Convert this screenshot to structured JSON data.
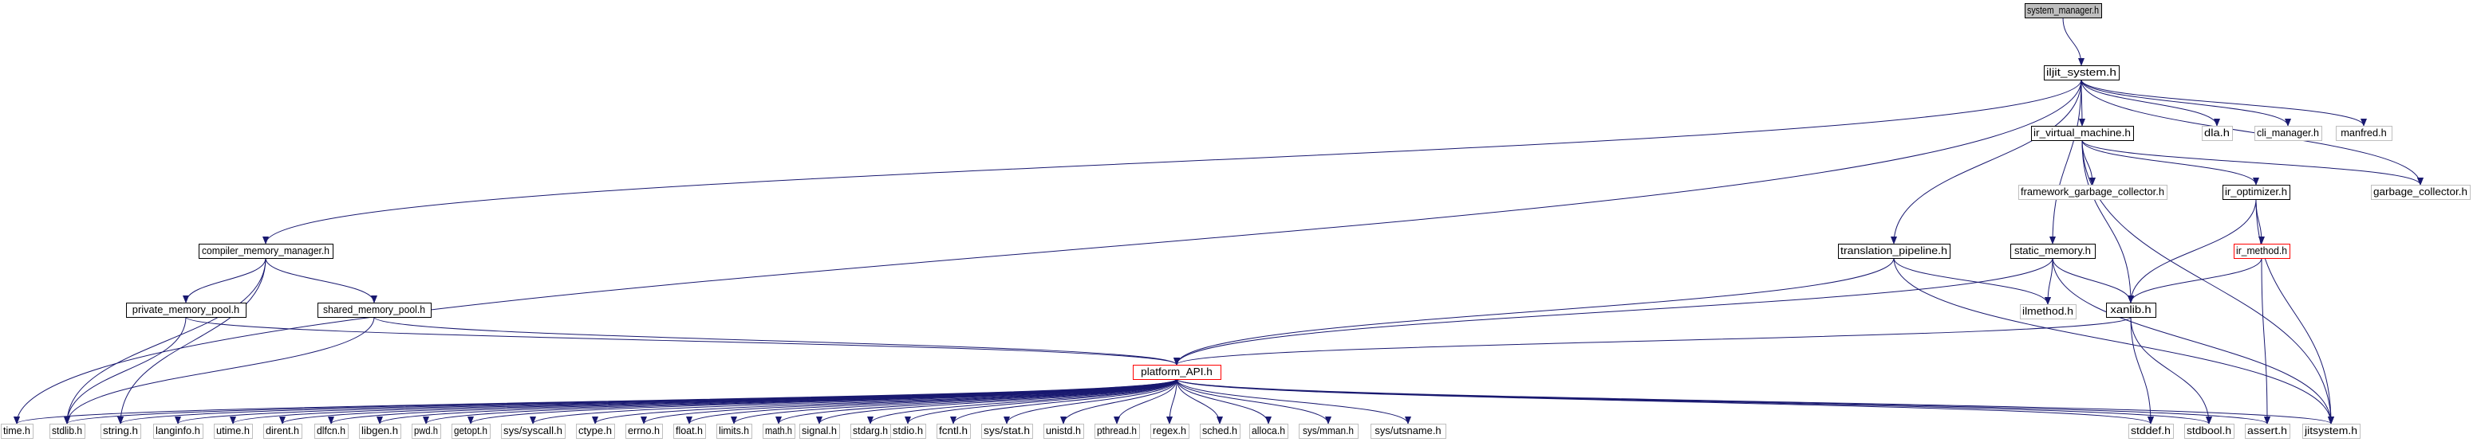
{
  "colors": {
    "edge": "#191970",
    "box_black": "#000000",
    "box_gray": "#bfbfbf",
    "box_red": "#ff0000",
    "root_fill": "#bfbfbf",
    "text": "#000000"
  },
  "nodes": [
    {
      "id": "system_manager",
      "label": "system_manager.h",
      "style": "root"
    },
    {
      "id": "iljit_system",
      "label": "iljit_system.h",
      "style": "black"
    },
    {
      "id": "time",
      "label": "time.h",
      "style": "gray"
    },
    {
      "id": "compiler_memory_manager",
      "label": "compiler_memory_manager.h",
      "style": "black"
    },
    {
      "id": "translation_pipeline",
      "label": "translation_pipeline.h",
      "style": "black"
    },
    {
      "id": "static_memory",
      "label": "static_memory.h",
      "style": "black"
    },
    {
      "id": "ir_virtual_machine",
      "label": "ir_virtual_machine.h",
      "style": "black"
    },
    {
      "id": "dla",
      "label": "dla.h",
      "style": "gray"
    },
    {
      "id": "cli_manager",
      "label": "cli_manager.h",
      "style": "gray"
    },
    {
      "id": "manfred",
      "label": "manfred.h",
      "style": "gray"
    },
    {
      "id": "garbage_collector",
      "label": "garbage_collector.h",
      "style": "gray"
    },
    {
      "id": "framework_garbage_collector",
      "label": "framework_garbage_collector.h",
      "style": "gray"
    },
    {
      "id": "ir_optimizer",
      "label": "ir_optimizer.h",
      "style": "black"
    },
    {
      "id": "ir_method",
      "label": "ir_method.h",
      "style": "red"
    },
    {
      "id": "private_memory_pool",
      "label": "private_memory_pool.h",
      "style": "black"
    },
    {
      "id": "shared_memory_pool",
      "label": "shared_memory_pool.h",
      "style": "black"
    },
    {
      "id": "ilmethod",
      "label": "ilmethod.h",
      "style": "gray"
    },
    {
      "id": "xanlib",
      "label": "xanlib.h",
      "style": "black"
    },
    {
      "id": "platform_API",
      "label": "platform_API.h",
      "style": "red"
    },
    {
      "id": "stdlib",
      "label": "stdlib.h",
      "style": "gray"
    },
    {
      "id": "string",
      "label": "string.h",
      "style": "gray"
    },
    {
      "id": "langinfo",
      "label": "langinfo.h",
      "style": "gray"
    },
    {
      "id": "utime",
      "label": "utime.h",
      "style": "gray"
    },
    {
      "id": "dirent",
      "label": "dirent.h",
      "style": "gray"
    },
    {
      "id": "dlfcn",
      "label": "dlfcn.h",
      "style": "gray"
    },
    {
      "id": "libgen",
      "label": "libgen.h",
      "style": "gray"
    },
    {
      "id": "pwd",
      "label": "pwd.h",
      "style": "gray"
    },
    {
      "id": "getopt",
      "label": "getopt.h",
      "style": "gray"
    },
    {
      "id": "sys_syscall",
      "label": "sys/syscall.h",
      "style": "gray"
    },
    {
      "id": "ctype",
      "label": "ctype.h",
      "style": "gray"
    },
    {
      "id": "errno",
      "label": "errno.h",
      "style": "gray"
    },
    {
      "id": "float",
      "label": "float.h",
      "style": "gray"
    },
    {
      "id": "limits",
      "label": "limits.h",
      "style": "gray"
    },
    {
      "id": "math",
      "label": "math.h",
      "style": "gray"
    },
    {
      "id": "signal",
      "label": "signal.h",
      "style": "gray"
    },
    {
      "id": "stdarg",
      "label": "stdarg.h",
      "style": "gray"
    },
    {
      "id": "stdio",
      "label": "stdio.h",
      "style": "gray"
    },
    {
      "id": "fcntl",
      "label": "fcntl.h",
      "style": "gray"
    },
    {
      "id": "sys_stat",
      "label": "sys/stat.h",
      "style": "gray"
    },
    {
      "id": "unistd",
      "label": "unistd.h",
      "style": "gray"
    },
    {
      "id": "pthread",
      "label": "pthread.h",
      "style": "gray"
    },
    {
      "id": "regex",
      "label": "regex.h",
      "style": "gray"
    },
    {
      "id": "sched",
      "label": "sched.h",
      "style": "gray"
    },
    {
      "id": "alloca",
      "label": "alloca.h",
      "style": "gray"
    },
    {
      "id": "sys_mman",
      "label": "sys/mman.h",
      "style": "gray"
    },
    {
      "id": "sys_utsname",
      "label": "sys/utsname.h",
      "style": "gray"
    },
    {
      "id": "stddef",
      "label": "stddef.h",
      "style": "gray"
    },
    {
      "id": "stdbool",
      "label": "stdbool.h",
      "style": "gray"
    },
    {
      "id": "assert",
      "label": "assert.h",
      "style": "gray"
    },
    {
      "id": "jitsystem",
      "label": "jitsystem.h",
      "style": "gray"
    }
  ],
  "edges": [
    [
      "system_manager",
      "iljit_system"
    ],
    [
      "iljit_system",
      "time"
    ],
    [
      "iljit_system",
      "compiler_memory_manager"
    ],
    [
      "iljit_system",
      "translation_pipeline"
    ],
    [
      "iljit_system",
      "static_memory"
    ],
    [
      "iljit_system",
      "ir_virtual_machine"
    ],
    [
      "iljit_system",
      "dla"
    ],
    [
      "iljit_system",
      "cli_manager"
    ],
    [
      "iljit_system",
      "manfred"
    ],
    [
      "iljit_system",
      "garbage_collector"
    ],
    [
      "ir_virtual_machine",
      "framework_garbage_collector"
    ],
    [
      "ir_virtual_machine",
      "ir_optimizer"
    ],
    [
      "ir_virtual_machine",
      "garbage_collector"
    ],
    [
      "ir_virtual_machine",
      "xanlib"
    ],
    [
      "ir_virtual_machine",
      "jitsystem"
    ],
    [
      "ir_optimizer",
      "ir_method"
    ],
    [
      "ir_optimizer",
      "xanlib"
    ],
    [
      "ir_optimizer",
      "jitsystem"
    ],
    [
      "ir_method",
      "xanlib"
    ],
    [
      "ir_method",
      "assert"
    ],
    [
      "compiler_memory_manager",
      "private_memory_pool"
    ],
    [
      "compiler_memory_manager",
      "shared_memory_pool"
    ],
    [
      "compiler_memory_manager",
      "stdlib"
    ],
    [
      "compiler_memory_manager",
      "string"
    ],
    [
      "private_memory_pool",
      "platform_API"
    ],
    [
      "private_memory_pool",
      "stdlib"
    ],
    [
      "shared_memory_pool",
      "platform_API"
    ],
    [
      "shared_memory_pool",
      "stdlib"
    ],
    [
      "translation_pipeline",
      "ilmethod"
    ],
    [
      "translation_pipeline",
      "platform_API"
    ],
    [
      "translation_pipeline",
      "jitsystem"
    ],
    [
      "static_memory",
      "ilmethod"
    ],
    [
      "static_memory",
      "xanlib"
    ],
    [
      "static_memory",
      "platform_API"
    ],
    [
      "static_memory",
      "jitsystem"
    ],
    [
      "xanlib",
      "platform_API"
    ],
    [
      "xanlib",
      "stddef"
    ],
    [
      "xanlib",
      "stdbool"
    ],
    [
      "platform_API",
      "time"
    ],
    [
      "platform_API",
      "stdlib"
    ],
    [
      "platform_API",
      "string"
    ],
    [
      "platform_API",
      "langinfo"
    ],
    [
      "platform_API",
      "utime"
    ],
    [
      "platform_API",
      "dirent"
    ],
    [
      "platform_API",
      "dlfcn"
    ],
    [
      "platform_API",
      "libgen"
    ],
    [
      "platform_API",
      "pwd"
    ],
    [
      "platform_API",
      "getopt"
    ],
    [
      "platform_API",
      "sys_syscall"
    ],
    [
      "platform_API",
      "ctype"
    ],
    [
      "platform_API",
      "errno"
    ],
    [
      "platform_API",
      "float"
    ],
    [
      "platform_API",
      "limits"
    ],
    [
      "platform_API",
      "math"
    ],
    [
      "platform_API",
      "signal"
    ],
    [
      "platform_API",
      "stdarg"
    ],
    [
      "platform_API",
      "stdio"
    ],
    [
      "platform_API",
      "fcntl"
    ],
    [
      "platform_API",
      "sys_stat"
    ],
    [
      "platform_API",
      "unistd"
    ],
    [
      "platform_API",
      "pthread"
    ],
    [
      "platform_API",
      "regex"
    ],
    [
      "platform_API",
      "sched"
    ],
    [
      "platform_API",
      "alloca"
    ],
    [
      "platform_API",
      "sys_mman"
    ],
    [
      "platform_API",
      "sys_utsname"
    ],
    [
      "platform_API",
      "stddef"
    ],
    [
      "platform_API",
      "stdbool"
    ],
    [
      "platform_API",
      "assert"
    ],
    [
      "platform_API",
      "jitsystem"
    ]
  ]
}
